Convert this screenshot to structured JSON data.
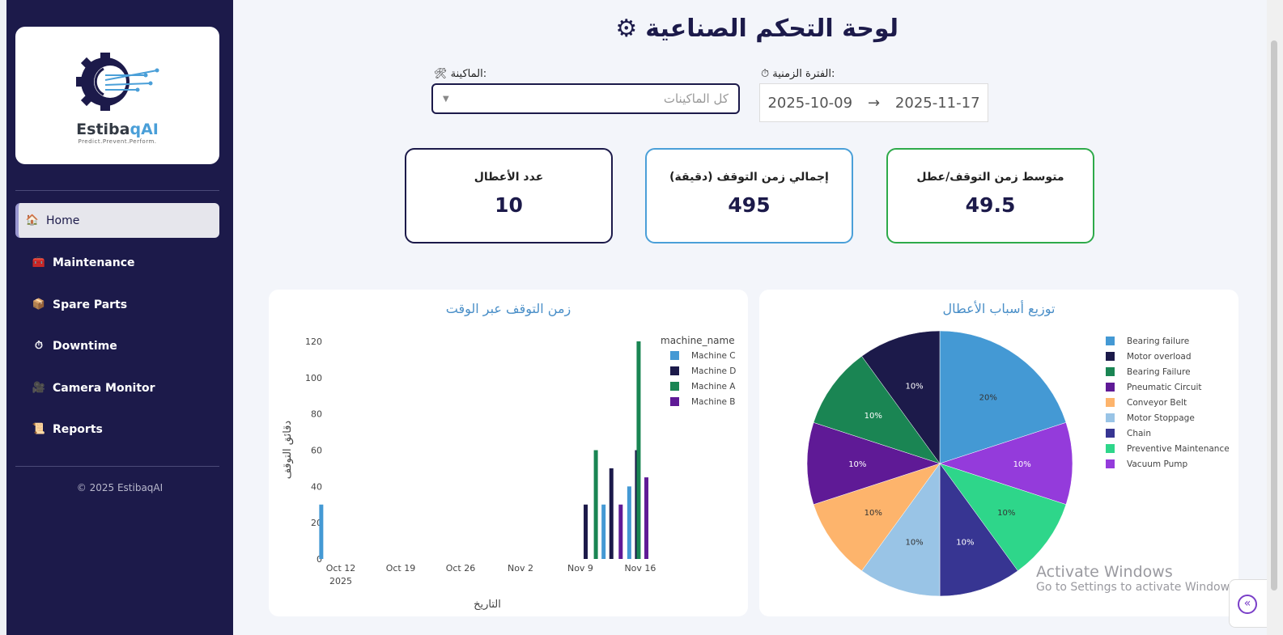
{
  "sidebar": {
    "logo": {
      "name_a": "Estiba",
      "name_b": "qAI",
      "tagline": "Predict.Prevent.Perform."
    },
    "items": [
      {
        "label": "Home",
        "icon": "🏠",
        "active": true
      },
      {
        "label": "Maintenance",
        "icon": "🧰"
      },
      {
        "label": "Spare Parts",
        "icon": "📦"
      },
      {
        "label": "Downtime",
        "icon": "⏱"
      },
      {
        "label": "Camera Monitor",
        "icon": "🎥"
      },
      {
        "label": "Reports",
        "icon": "📜"
      }
    ],
    "copyright": "© 2025 EstibaqAI"
  },
  "header": {
    "title": "لوحة التحكم الصناعية",
    "icon": "⚙"
  },
  "filters": {
    "machine_label": ":الماكينة",
    "machine_icon": "🛠",
    "machine_value": "كل الماكينات",
    "period_label": ":الفترة الزمنية",
    "period_icon": "⏱",
    "start": "2025-10-09",
    "arrow": "→",
    "end": "2025-11-17"
  },
  "kpis": [
    {
      "label": "عدد الأعطال",
      "value": "10",
      "color": "#1c1a4a"
    },
    {
      "label": "إجمالي زمن التوقف (دقيقة)",
      "value": "495",
      "color": "#4a9fd8"
    },
    {
      "label": "متوسط زمن التوقف/عطل",
      "value": "49.5",
      "color": "#2eaa4a"
    }
  ],
  "chart_data": [
    {
      "type": "bar",
      "title": "زمن التوقف عبر الوقت",
      "xlabel": "التاريخ",
      "ylabel": "دقائق التوقف",
      "ylim": [
        0,
        120
      ],
      "yticks": [
        0,
        20,
        40,
        60,
        80,
        100,
        120
      ],
      "xticks": [
        {
          "date": "2025-10-12",
          "label": "Oct 12",
          "sub": "2025"
        },
        {
          "date": "2025-10-19",
          "label": "Oct 19"
        },
        {
          "date": "2025-10-26",
          "label": "Oct 26"
        },
        {
          "date": "2025-11-02",
          "label": "Nov 2"
        },
        {
          "date": "2025-11-09",
          "label": "Nov 9"
        },
        {
          "date": "2025-11-16",
          "label": "Nov 16"
        }
      ],
      "legend_title": "machine_name",
      "legend_position": "top-right",
      "series": [
        {
          "name": "Machine C",
          "color": "#4499d4",
          "points": [
            [
              "2025-10-10",
              30
            ],
            [
              "2025-11-12",
              30
            ],
            [
              "2025-11-15",
              40
            ]
          ]
        },
        {
          "name": "Machine D",
          "color": "#1c1a4a",
          "points": [
            [
              "2025-11-10",
              30
            ],
            [
              "2025-11-13",
              50
            ],
            [
              "2025-11-16",
              60
            ]
          ]
        },
        {
          "name": "Machine A",
          "color": "#1a8553",
          "points": [
            [
              "2025-11-11",
              60
            ],
            [
              "2025-11-16",
              120
            ]
          ]
        },
        {
          "name": "Machine B",
          "color": "#5f1a96",
          "points": [
            [
              "2025-11-14",
              30
            ],
            [
              "2025-11-17",
              45
            ]
          ]
        }
      ]
    },
    {
      "type": "pie",
      "title": "توزيع أسباب الأعطال",
      "legend_position": "right",
      "slices": [
        {
          "label": "Bearing failure",
          "value": 20,
          "color": "#4499d4"
        },
        {
          "label": "Motor overload",
          "value": 10,
          "color": "#1c1a4a"
        },
        {
          "label": "Bearing Failure",
          "value": 10,
          "color": "#1a8553"
        },
        {
          "label": "Pneumatic Circuit",
          "value": 10,
          "color": "#5f1a96"
        },
        {
          "label": "Conveyor Belt",
          "value": 10,
          "color": "#fdb46c"
        },
        {
          "label": "Motor Stoppage",
          "value": 10,
          "color": "#99c4e6"
        },
        {
          "label": "Chain",
          "value": 10,
          "color": "#373592"
        },
        {
          "label": "Preventive Maintenance",
          "value": 10,
          "color": "#2ed68a"
        },
        {
          "label": "Vacuum Pump",
          "value": 10,
          "color": "#943bdb"
        }
      ],
      "clockwise_order": [
        "Bearing failure",
        "Vacuum Pump",
        "Preventive Maintenance",
        "Chain",
        "Motor Stoppage",
        "Conveyor Belt",
        "Pneumatic Circuit",
        "Bearing Failure",
        "Motor overload"
      ]
    }
  ],
  "watermark": {
    "line1": "Activate Windows",
    "line2": "Go to Settings to activate Windows."
  },
  "collapse_icon": "«"
}
